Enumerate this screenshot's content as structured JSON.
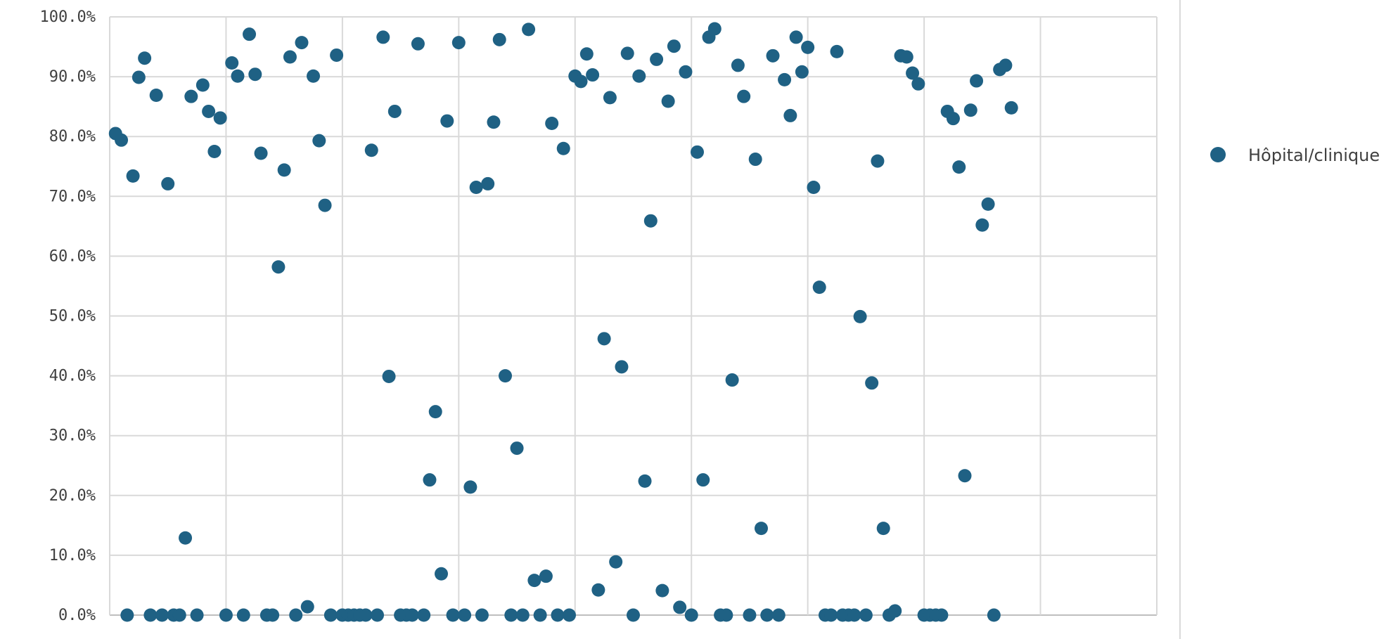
{
  "chart_data": {
    "type": "scatter",
    "title": "",
    "xlabel": "",
    "ylabel": "",
    "ylim": [
      0,
      100
    ],
    "xlim": [
      0,
      180
    ],
    "y_ticks": [
      "0.0%",
      "10.0%",
      "20.0%",
      "30.0%",
      "40.0%",
      "50.0%",
      "60.0%",
      "70.0%",
      "80.0%",
      "90.0%",
      "100.0%"
    ],
    "grid": true,
    "legend_position": "right",
    "series": [
      {
        "name": "Hôpital/clinique",
        "color": "#1f6184",
        "values": [
          80.5,
          79.4,
          0,
          73.4,
          89.9,
          93.1,
          0,
          86.9,
          0,
          72.1,
          0,
          0,
          12.9,
          86.7,
          0,
          88.6,
          84.2,
          77.5,
          83.1,
          0,
          92.3,
          90.1,
          0,
          97.1,
          90.4,
          77.2,
          0,
          0,
          58.2,
          74.4,
          93.3,
          0,
          95.7,
          1.4,
          90.1,
          79.3,
          68.5,
          0,
          93.6,
          0,
          0,
          0,
          0,
          0,
          77.7,
          0,
          96.6,
          39.9,
          84.2,
          0,
          0,
          0,
          95.5,
          0,
          22.6,
          34.0,
          6.9,
          82.6,
          0,
          95.7,
          0,
          21.4,
          71.5,
          0,
          72.1,
          82.4,
          96.2,
          40.0,
          0,
          27.9,
          0,
          97.9,
          5.8,
          0,
          6.5,
          82.2,
          0,
          78.0,
          0,
          90.1,
          89.2,
          93.8,
          90.3,
          4.2,
          46.2,
          86.5,
          8.9,
          41.5,
          93.9,
          0,
          90.1,
          22.4,
          65.9,
          92.9,
          4.1,
          85.9,
          95.1,
          1.3,
          90.8,
          0,
          77.4,
          22.6,
          96.6,
          98.0,
          0,
          0,
          39.3,
          91.9,
          86.7,
          0,
          76.2,
          14.5,
          0,
          93.5,
          0,
          89.5,
          83.5,
          96.6,
          90.8,
          94.9,
          71.5,
          54.8,
          0,
          0,
          94.2,
          0,
          0,
          0,
          49.9,
          0,
          38.8,
          75.9,
          14.5,
          0,
          0.7,
          93.5,
          93.3,
          90.6,
          88.8,
          0,
          0,
          0,
          0,
          84.2,
          83.0,
          74.9,
          23.3,
          84.4,
          89.3,
          65.2,
          68.7,
          0,
          91.2,
          91.9,
          84.8
        ]
      }
    ]
  }
}
